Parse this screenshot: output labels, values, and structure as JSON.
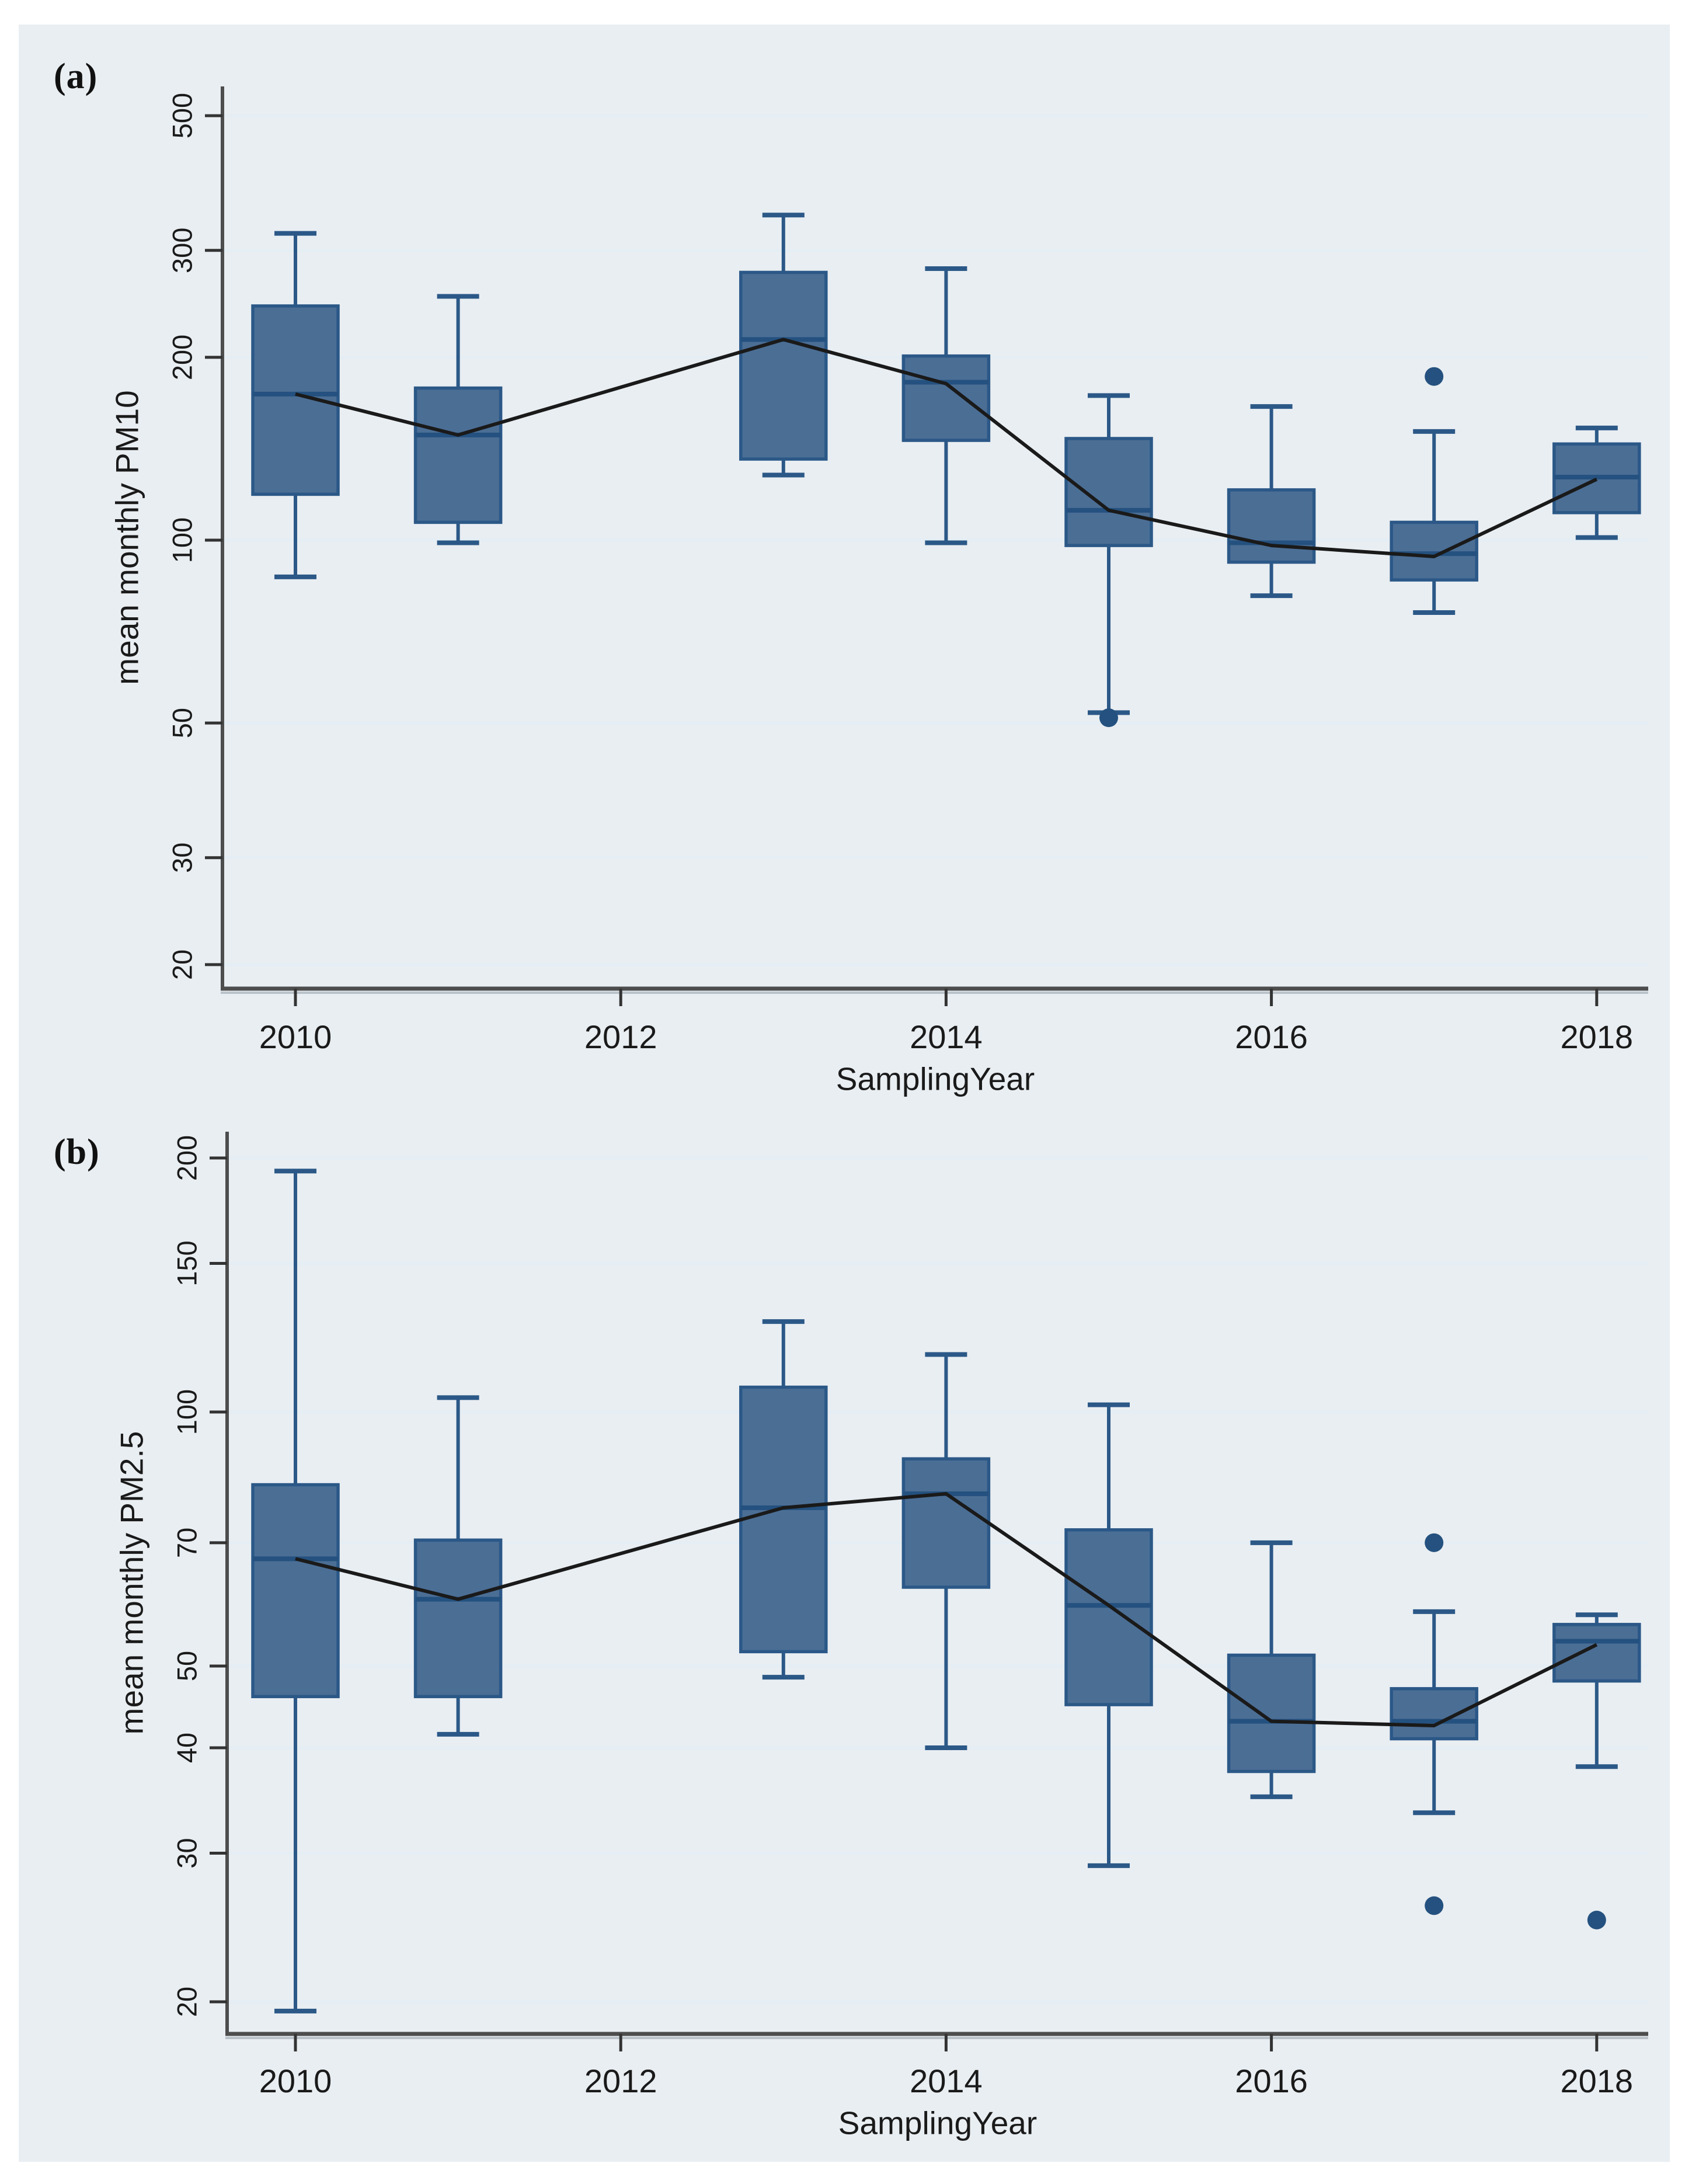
{
  "figure": {
    "page_background": "#ffffff",
    "figure_background": "#e9eef2",
    "plot_background": "#ffffff"
  },
  "colors": {
    "box_fill": "#4b6e95",
    "box_border": "#2b5887",
    "median_line": "#24517f",
    "whisker": "#2b5887",
    "outlier_dot": "#24517f",
    "mean_line": "#1a1a1a",
    "gridline": "#e4eef4",
    "axis_line": "#4d4d4d",
    "axis_shadow": "#b9c2c8",
    "tick_mark": "#333333",
    "text": "#1a1a1a"
  },
  "chart_data": [
    {
      "type": "box",
      "panel_label": "(a)",
      "ylabel": "mean monthly PM10",
      "xlabel": "SamplingYear",
      "y_scale": "log",
      "ylim": [
        18,
        560
      ],
      "yticks": [
        500,
        300,
        200,
        100,
        50,
        30,
        20
      ],
      "xticks": [
        2010,
        2012,
        2014,
        2016,
        2018
      ],
      "grid": "horizontal",
      "legend": "none",
      "series": [
        {
          "year": 2010,
          "whisker_low": 87,
          "q1": 119,
          "median": 174,
          "q3": 243,
          "whisker_high": 320,
          "outliers": []
        },
        {
          "year": 2011,
          "whisker_low": 99,
          "q1": 107,
          "median": 149,
          "q3": 178,
          "whisker_high": 252,
          "outliers": []
        },
        {
          "year": 2013,
          "whisker_low": 128,
          "q1": 136,
          "median": 214,
          "q3": 276,
          "whisker_high": 343,
          "outliers": []
        },
        {
          "year": 2014,
          "whisker_low": 99,
          "q1": 146,
          "median": 182,
          "q3": 201,
          "whisker_high": 280,
          "outliers": []
        },
        {
          "year": 2015,
          "whisker_low": 52,
          "q1": 98,
          "median": 112,
          "q3": 147,
          "whisker_high": 173,
          "outliers": [
            51
          ]
        },
        {
          "year": 2016,
          "whisker_low": 81,
          "q1": 92,
          "median": 99,
          "q3": 121,
          "whisker_high": 166,
          "outliers": []
        },
        {
          "year": 2017,
          "whisker_low": 76,
          "q1": 86,
          "median": 95,
          "q3": 107,
          "whisker_high": 151,
          "outliers": [
            186
          ]
        },
        {
          "year": 2018,
          "whisker_low": 101,
          "q1": 111,
          "median": 127,
          "q3": 144,
          "whisker_high": 153,
          "outliers": []
        }
      ],
      "mean_line": [
        {
          "year": 2010,
          "value": 174
        },
        {
          "year": 2011,
          "value": 149
        },
        {
          "year": 2013,
          "value": 214
        },
        {
          "year": 2014,
          "value": 181
        },
        {
          "year": 2015,
          "value": 112
        },
        {
          "year": 2016,
          "value": 98
        },
        {
          "year": 2017,
          "value": 94
        },
        {
          "year": 2018,
          "value": 126
        }
      ]
    },
    {
      "type": "box",
      "panel_label": "(b)",
      "ylabel": "mean monthly PM2.5",
      "xlabel": "SamplingYear",
      "y_scale": "log",
      "ylim": [
        18,
        210
      ],
      "yticks": [
        200,
        150,
        100,
        70,
        50,
        40,
        30,
        20
      ],
      "xticks": [
        2010,
        2012,
        2014,
        2016,
        2018
      ],
      "grid": "horizontal",
      "legend": "none",
      "series": [
        {
          "year": 2010,
          "whisker_low": 19.5,
          "q1": 46,
          "median": 67,
          "q3": 82,
          "whisker_high": 193,
          "outliers": []
        },
        {
          "year": 2011,
          "whisker_low": 41.5,
          "q1": 46,
          "median": 60,
          "q3": 70.5,
          "whisker_high": 104,
          "outliers": []
        },
        {
          "year": 2013,
          "whisker_low": 48.5,
          "q1": 52,
          "median": 77,
          "q3": 107,
          "whisker_high": 128,
          "outliers": []
        },
        {
          "year": 2014,
          "whisker_low": 40,
          "q1": 62,
          "median": 80,
          "q3": 88,
          "whisker_high": 117,
          "outliers": []
        },
        {
          "year": 2015,
          "whisker_low": 29,
          "q1": 45,
          "median": 59,
          "q3": 72.5,
          "whisker_high": 102,
          "outliers": []
        },
        {
          "year": 2016,
          "whisker_low": 35,
          "q1": 37.5,
          "median": 43,
          "q3": 51.5,
          "whisker_high": 70,
          "outliers": []
        },
        {
          "year": 2017,
          "whisker_low": 33.5,
          "q1": 41,
          "median": 43,
          "q3": 47,
          "whisker_high": 58,
          "outliers": [
            70,
            26
          ]
        },
        {
          "year": 2018,
          "whisker_low": 38,
          "q1": 48,
          "median": 53.5,
          "q3": 56,
          "whisker_high": 57.5,
          "outliers": [
            25
          ]
        }
      ],
      "mean_line": [
        {
          "year": 2010,
          "value": 67
        },
        {
          "year": 2011,
          "value": 60
        },
        {
          "year": 2013,
          "value": 77
        },
        {
          "year": 2014,
          "value": 80
        },
        {
          "year": 2015,
          "value": 59
        },
        {
          "year": 2016,
          "value": 43
        },
        {
          "year": 2017,
          "value": 42.5
        },
        {
          "year": 2018,
          "value": 53
        }
      ]
    }
  ]
}
